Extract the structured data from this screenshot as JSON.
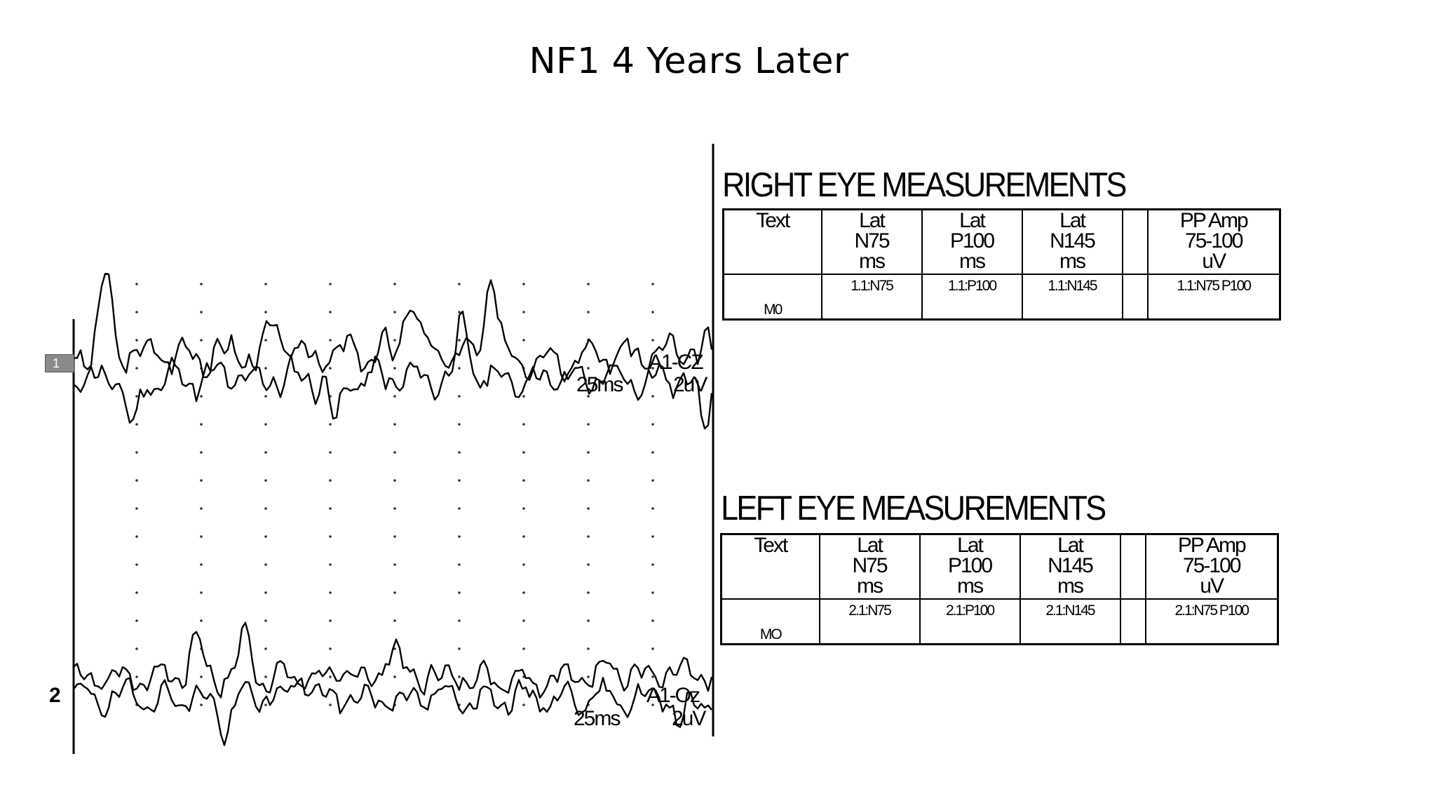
{
  "title": "NF1 4 Years Later",
  "channels": [
    {
      "number": "1",
      "lead": "A1-CZ",
      "time_scale": "25ms",
      "amp_scale": "2uV"
    },
    {
      "number": "2",
      "lead": "A1-Oz",
      "time_scale": "25ms",
      "amp_scale": "2uV"
    }
  ],
  "right_eye": {
    "heading": "RIGHT EYE MEASUREMENTS",
    "headers": [
      "Text",
      "Lat\nN75\nms",
      "Lat\nP100\nms",
      "Lat\nN145\nms",
      "",
      "PP Amp\n75-100\nuV"
    ],
    "row_label": "M0",
    "values": [
      "1.1:N75",
      "1.1:P100",
      "1.1:N145",
      "",
      "1.1:N75 P100"
    ]
  },
  "left_eye": {
    "heading": "LEFT EYE MEASUREMENTS",
    "headers": [
      "Text",
      "Lat\nN75\nms",
      "Lat\nP100\nms",
      "Lat\nN145\nms",
      "",
      "PP Amp\n75-100\nuV"
    ],
    "row_label": "MO",
    "values": [
      "2.1:N75",
      "2.1:P100",
      "2.1:N145",
      "",
      "2.1:N75 P100"
    ]
  },
  "colors": {
    "ink": "#000000",
    "marker": "#8a8a8a"
  }
}
